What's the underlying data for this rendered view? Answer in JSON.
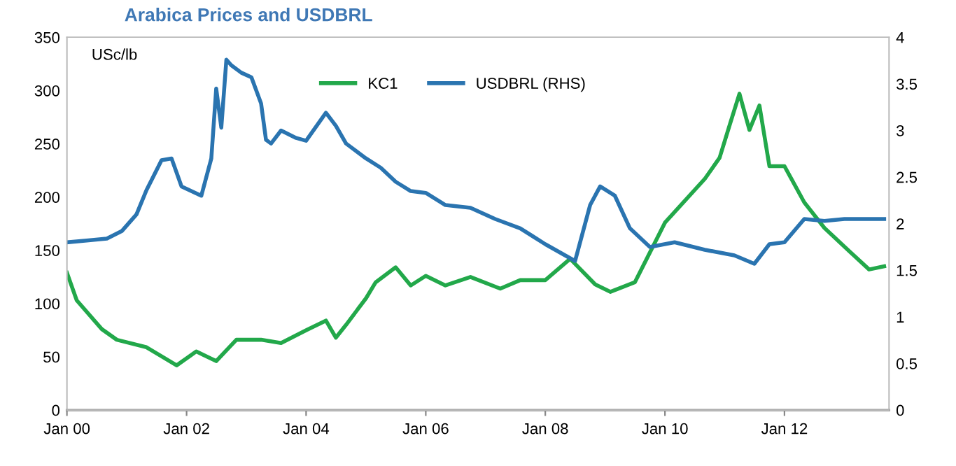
{
  "chart_data": {
    "type": "line",
    "title": "Arabica Prices and USDBRL",
    "ylabel": "USc/lb",
    "xlim": [
      "2000-01",
      "2013-10"
    ],
    "xticks": [
      {
        "value": "2000-01",
        "label": "Jan 00"
      },
      {
        "value": "2002-01",
        "label": "Jan 02"
      },
      {
        "value": "2004-01",
        "label": "Jan 04"
      },
      {
        "value": "2006-01",
        "label": "Jan 06"
      },
      {
        "value": "2008-01",
        "label": "Jan 08"
      },
      {
        "value": "2010-01",
        "label": "Jan 10"
      },
      {
        "value": "2012-01",
        "label": "Jan 12"
      }
    ],
    "ylim": [
      0,
      350
    ],
    "yticks": [
      0,
      50,
      100,
      150,
      200,
      250,
      300,
      350
    ],
    "y2lim": [
      0,
      4
    ],
    "y2ticks": [
      0,
      0.5,
      1,
      1.5,
      2,
      2.5,
      3,
      3.5,
      4
    ],
    "grid": false,
    "legend": "top",
    "line_style": "solid",
    "marker": "none",
    "series": [
      {
        "name": "KC1",
        "color": "#22a84a",
        "x": [
          "2000-01",
          "2000-03",
          "2000-08",
          "2000-11",
          "2001-05",
          "2001-11",
          "2002-03",
          "2002-07",
          "2002-11",
          "2003-04",
          "2003-08",
          "2004-01",
          "2004-05",
          "2004-07",
          "2004-09",
          "2005-01",
          "2005-03",
          "2005-07",
          "2005-10",
          "2006-01",
          "2006-05",
          "2006-10",
          "2007-04",
          "2007-08",
          "2008-01",
          "2008-06",
          "2008-11",
          "2009-02",
          "2009-07",
          "2010-01",
          "2010-09",
          "2010-12",
          "2011-02",
          "2011-04",
          "2011-06",
          "2011-08",
          "2011-10",
          "2012-01",
          "2012-05",
          "2012-09",
          "2013-02",
          "2013-06",
          "2013-09"
        ],
        "values": [
          129,
          103,
          76,
          66,
          59,
          42,
          55,
          46,
          66,
          66,
          63,
          75,
          84,
          68,
          80,
          105,
          120,
          134,
          117,
          126,
          117,
          125,
          114,
          122,
          122,
          142,
          118,
          111,
          120,
          176,
          217,
          237,
          268,
          297,
          263,
          286,
          229,
          229,
          195,
          171,
          149,
          132,
          135
        ]
      },
      {
        "name": "USDBRL (RHS)",
        "color": "#2a74b0",
        "axis": "y2",
        "x": [
          "2000-01",
          "2000-05",
          "2000-09",
          "2000-12",
          "2001-03",
          "2001-05",
          "2001-08",
          "2001-10",
          "2001-12",
          "2002-04",
          "2002-06",
          "2002-07",
          "2002-08",
          "2002-09",
          "2002-10",
          "2002-12",
          "2003-02",
          "2003-04",
          "2003-05",
          "2003-06",
          "2003-08",
          "2003-11",
          "2004-01",
          "2004-05",
          "2004-07",
          "2004-09",
          "2005-01",
          "2005-04",
          "2005-07",
          "2005-10",
          "2006-01",
          "2006-05",
          "2006-10",
          "2007-03",
          "2007-08",
          "2008-01",
          "2008-07",
          "2008-10",
          "2008-12",
          "2009-03",
          "2009-06",
          "2009-10",
          "2010-03",
          "2010-09",
          "2011-03",
          "2011-07",
          "2011-10",
          "2012-01",
          "2012-05",
          "2012-09",
          "2013-01",
          "2013-05",
          "2013-09"
        ],
        "values": [
          1.8,
          1.82,
          1.84,
          1.92,
          2.1,
          2.36,
          2.68,
          2.7,
          2.4,
          2.3,
          2.7,
          3.45,
          3.03,
          3.76,
          3.7,
          3.62,
          3.57,
          3.29,
          2.9,
          2.86,
          3.0,
          2.92,
          2.89,
          3.19,
          3.05,
          2.86,
          2.7,
          2.6,
          2.45,
          2.35,
          2.33,
          2.2,
          2.17,
          2.05,
          1.95,
          1.78,
          1.6,
          2.2,
          2.4,
          2.3,
          1.95,
          1.75,
          1.8,
          1.72,
          1.66,
          1.57,
          1.78,
          1.8,
          2.05,
          2.03,
          2.05,
          2.05,
          2.05
        ]
      }
    ]
  }
}
